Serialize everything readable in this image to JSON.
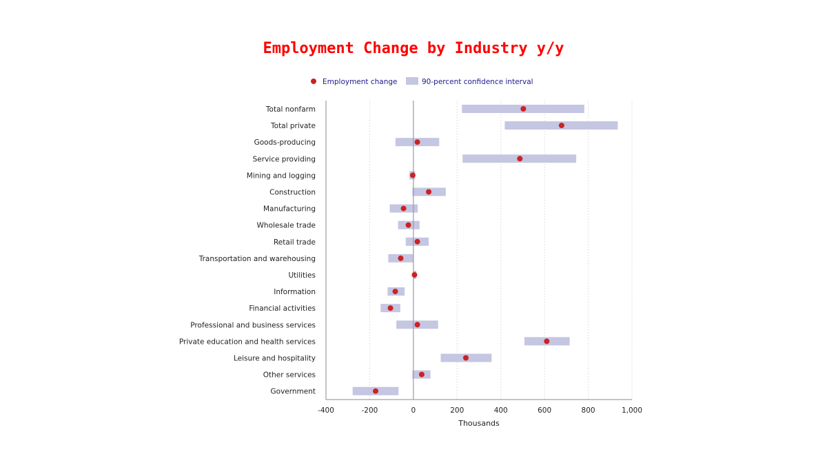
{
  "title": "Employment Change by Industry y/y",
  "chart_data": {
    "type": "scatter",
    "title": "Employment Change by Industry y/y",
    "xlabel": "Thousands",
    "ylabel": "",
    "xlim": [
      -400,
      1000
    ],
    "x_ticks": [
      "-400",
      "-200",
      "0",
      "200",
      "400",
      "600",
      "800",
      "1,000"
    ],
    "x_tick_values": [
      -400,
      -200,
      0,
      200,
      400,
      600,
      800,
      1000
    ],
    "grid": "vertical dotted",
    "legend": {
      "position": "top",
      "point_label": "Employment change",
      "interval_label": "90-percent confidence interval"
    },
    "colors": {
      "point": "#cc2222",
      "interval": "#c4c6e2",
      "zero_line": "#9a9aa8",
      "grid": "#d6d6d6",
      "axis": "#888888",
      "title": "#ff0000",
      "legend_text": "#1f1a8c"
    },
    "categories": [
      "Total nonfarm",
      "Total private",
      "Goods-producing",
      "Service providing",
      "Mining and logging",
      "Construction",
      "Manufacturing",
      "Wholesale trade",
      "Retail trade",
      "Transportation and warehousing",
      "Utilities",
      "Information",
      "Financial activities",
      "Professional and business services",
      "Private education and health services",
      "Leisure and hospitality",
      "Other services",
      "Government"
    ],
    "values": [
      503,
      678,
      18,
      487,
      -3,
      70,
      -45,
      -23,
      18,
      -58,
      5,
      -83,
      -105,
      18,
      610,
      240,
      38,
      -173
    ],
    "ci_low": [
      222,
      418,
      -82,
      225,
      -18,
      -5,
      -108,
      -70,
      -35,
      -115,
      0,
      -118,
      -150,
      -78,
      508,
      125,
      -5,
      -278
    ],
    "ci_high": [
      782,
      935,
      118,
      745,
      8,
      148,
      20,
      28,
      70,
      0,
      13,
      -40,
      -60,
      113,
      715,
      358,
      78,
      -68
    ]
  }
}
